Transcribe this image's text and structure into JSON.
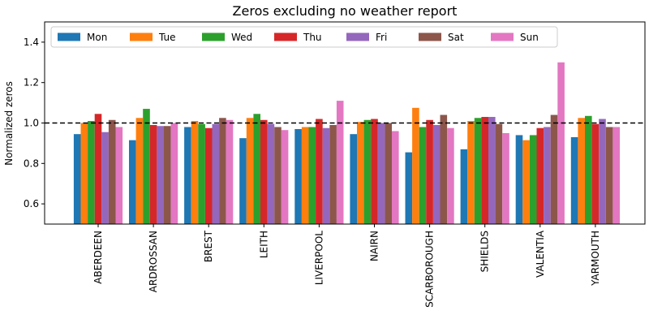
{
  "chart_data": {
    "type": "bar",
    "title": "Zeros excluding no weather report",
    "xlabel": "",
    "ylabel": "Normalized zeros",
    "ylim": [
      0.5,
      1.5
    ],
    "yticks": [
      "0.6",
      "0.8",
      "1.0",
      "1.2",
      "1.4"
    ],
    "reference_line": 1.0,
    "legend_position": "top",
    "categories": [
      "ABERDEEN",
      "ARDROSSAN",
      "BREST",
      "LEITH",
      "LIVERPOOL",
      "NAIRN",
      "SCARBOROUGH",
      "SHIELDS",
      "VALENTIA",
      "YARMOUTH"
    ],
    "series": [
      {
        "name": "Mon",
        "color": "#1f77b4",
        "values": [
          0.945,
          0.915,
          0.98,
          0.925,
          0.97,
          0.945,
          0.855,
          0.87,
          0.94,
          0.93
        ]
      },
      {
        "name": "Tue",
        "color": "#ff7f0e",
        "values": [
          1.0,
          1.025,
          1.01,
          1.025,
          0.98,
          1.005,
          1.075,
          1.01,
          0.915,
          1.025
        ]
      },
      {
        "name": "Wed",
        "color": "#2ca02c",
        "values": [
          1.01,
          1.07,
          0.995,
          1.045,
          0.98,
          1.015,
          0.98,
          1.025,
          0.94,
          1.035
        ]
      },
      {
        "name": "Thu",
        "color": "#d62728",
        "values": [
          1.045,
          0.99,
          0.975,
          1.015,
          1.02,
          1.02,
          1.015,
          1.03,
          0.975,
          0.995
        ]
      },
      {
        "name": "Fri",
        "color": "#9467bd",
        "values": [
          0.955,
          0.985,
          0.995,
          0.995,
          0.975,
          1.0,
          0.99,
          1.03,
          0.98,
          1.02
        ]
      },
      {
        "name": "Sat",
        "color": "#8c564b",
        "values": [
          1.015,
          0.985,
          1.025,
          0.98,
          0.99,
          1.0,
          1.04,
          0.995,
          1.04,
          0.98
        ]
      },
      {
        "name": "Sun",
        "color": "#e377c2",
        "values": [
          0.98,
          1.0,
          1.015,
          0.965,
          1.11,
          0.96,
          0.975,
          0.95,
          1.3,
          0.98
        ]
      }
    ]
  }
}
